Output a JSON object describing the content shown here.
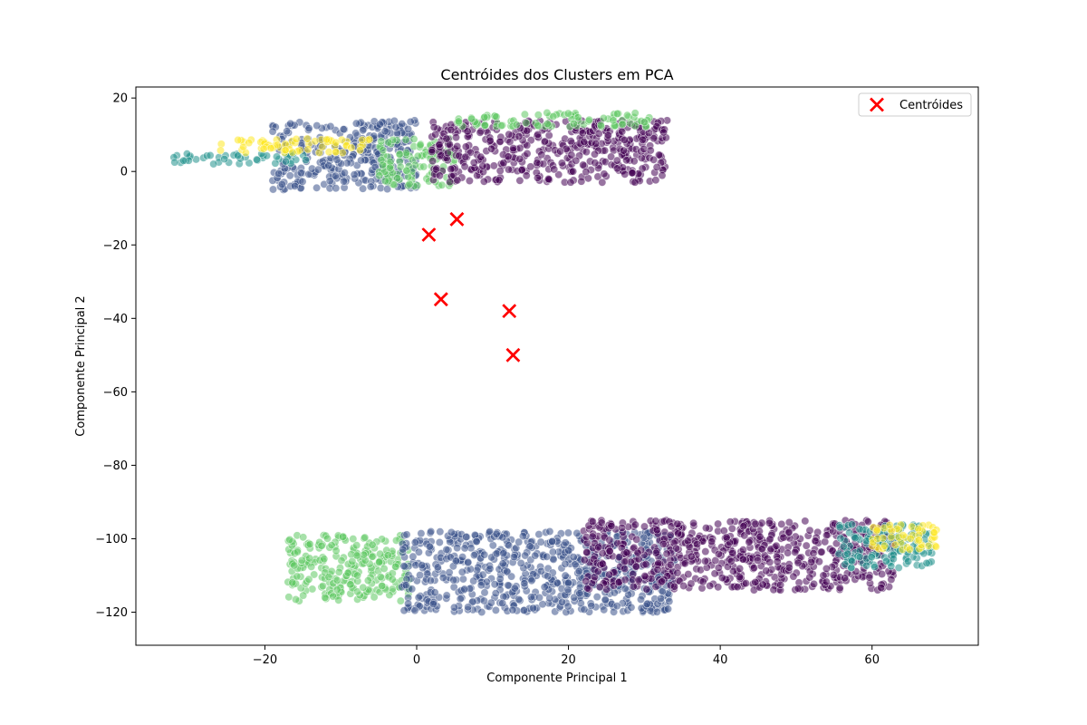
{
  "chart_data": {
    "type": "scatter",
    "title": "Centróides dos Clusters em PCA",
    "xlabel": "Componente Principal 1",
    "ylabel": "Componente Principal 2",
    "xlim": [
      -37,
      74
    ],
    "ylim": [
      -129,
      23
    ],
    "xticks": [
      -20,
      0,
      20,
      40,
      60
    ],
    "yticks": [
      20,
      0,
      -20,
      -40,
      -60,
      -80,
      -100,
      -120
    ],
    "grid": false,
    "legend_position": "top-right",
    "cluster_colors": [
      "#440154",
      "#3b528b",
      "#21918c",
      "#5ec962",
      "#fde725"
    ],
    "cluster_point_alpha": 0.55,
    "cluster_regions": [
      {
        "group": "upper",
        "cluster": 1,
        "x_range": [
          -19,
          0
        ],
        "y_range": [
          -5,
          14
        ]
      },
      {
        "group": "upper",
        "cluster": 3,
        "x_range": [
          -5,
          5
        ],
        "y_range": [
          -4,
          9
        ]
      },
      {
        "group": "upper",
        "cluster": 0,
        "x_range": [
          2,
          33
        ],
        "y_range": [
          -3,
          14
        ]
      },
      {
        "group": "upper",
        "cluster": 2,
        "x_range": [
          -32,
          -14
        ],
        "y_range": [
          2,
          5
        ]
      },
      {
        "group": "upper",
        "cluster": 4,
        "x_range": [
          -26,
          -6
        ],
        "y_range": [
          5,
          9
        ]
      },
      {
        "group": "upper",
        "cluster": 3,
        "x_range": [
          5,
          31
        ],
        "y_range": [
          12,
          16
        ]
      },
      {
        "group": "lower",
        "cluster": 3,
        "x_range": [
          -17,
          -1
        ],
        "y_range": [
          -117,
          -99
        ]
      },
      {
        "group": "lower",
        "cluster": 1,
        "x_range": [
          -2,
          34
        ],
        "y_range": [
          -120,
          -98
        ]
      },
      {
        "group": "lower",
        "cluster": 0,
        "x_range": [
          22,
          63
        ],
        "y_range": [
          -114,
          -95
        ]
      },
      {
        "group": "lower",
        "cluster": 2,
        "x_range": [
          55,
          68
        ],
        "y_range": [
          -108,
          -96
        ]
      },
      {
        "group": "lower",
        "cluster": 4,
        "x_range": [
          60,
          69
        ],
        "y_range": [
          -103,
          -96
        ]
      }
    ],
    "series": [
      {
        "name": "Centróides",
        "marker": "X",
        "color": "#ff0000",
        "x": [
          1.6,
          5.3,
          3.2,
          12.2,
          12.7
        ],
        "y": [
          -17.2,
          -13.0,
          -34.8,
          -38.0,
          -50.0
        ]
      }
    ]
  }
}
